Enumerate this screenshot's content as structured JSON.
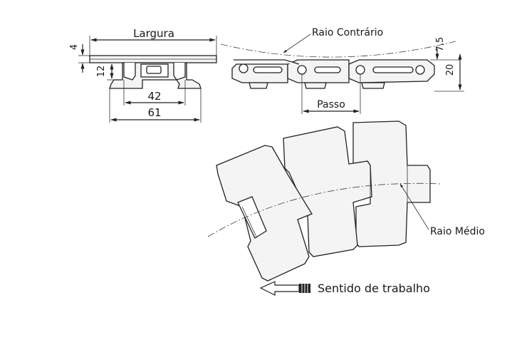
{
  "labels": {
    "width": "Largura",
    "thickness": "4",
    "height_12": "12",
    "dim_42": "42",
    "dim_61": "61",
    "reverse_radius": "Raio Contrário",
    "dim_7_5": "7,5",
    "dim_20": "20",
    "pitch": "Passo",
    "mean_radius": "Raio Médio",
    "working_direction": "Sentido de trabalho"
  }
}
